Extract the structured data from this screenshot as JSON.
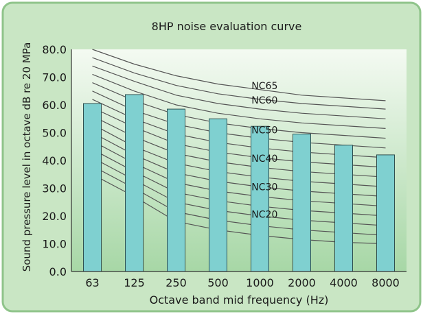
{
  "colors": {
    "panel_fill": "#c9e6c4",
    "panel_stroke": "#8fc48a",
    "plot_top": "#f4faf2",
    "plot_bottom": "#a7d7a6",
    "bar_fill": "#7fd0d0",
    "bar_stroke": "#2f4f4f",
    "curve_stroke": "#555555",
    "axis_stroke": "#333333"
  },
  "chart_data": {
    "type": "bar",
    "title": "8HP noise evaluation curve",
    "xlabel": "Octave band mid frequency (Hz)",
    "ylabel": "Sound pressure level in octave dB re 20 MPa",
    "ylim": [
      0,
      80
    ],
    "yticks": [
      0,
      10,
      20,
      30,
      40,
      50,
      60,
      70,
      80
    ],
    "ytick_labels": [
      "0.0",
      "10.0",
      "20.0",
      "30.0",
      "40.0",
      "50.0",
      "60.0",
      "70.0",
      "80.0"
    ],
    "categories": [
      "63",
      "125",
      "250",
      "500",
      "1000",
      "2000",
      "4000",
      "8000"
    ],
    "values": [
      60.5,
      63.7,
      58.5,
      55,
      52.3,
      49.5,
      45.5,
      42
    ],
    "curves": [
      {
        "values": [
          80,
          74.7,
          70.5,
          67.5,
          65.5,
          63.5,
          62.5,
          61.5
        ]
      },
      {
        "values": [
          77,
          71.5,
          67,
          64,
          62,
          60.5,
          59.5,
          58.5
        ]
      },
      {
        "values": [
          74,
          68.5,
          63.5,
          60.5,
          58.5,
          57,
          56,
          55
        ]
      },
      {
        "values": [
          71,
          65,
          60,
          57,
          55,
          53.5,
          52.5,
          51.5
        ]
      },
      {
        "values": [
          68,
          61.5,
          56.5,
          53.5,
          51.5,
          50,
          49,
          48
        ]
      },
      {
        "values": [
          65,
          58,
          53,
          50,
          48,
          46.5,
          45.5,
          44.5
        ]
      },
      {
        "values": [
          62,
          55,
          49.5,
          46.5,
          44.5,
          43,
          42,
          41
        ]
      },
      {
        "values": [
          59,
          52,
          46,
          43,
          41,
          39.5,
          38.5,
          37.5
        ]
      },
      {
        "values": [
          56,
          48.5,
          42.5,
          39.5,
          37.5,
          36,
          35,
          34
        ]
      },
      {
        "values": [
          53,
          45,
          39,
          36,
          34,
          32.5,
          31.5,
          30.5
        ]
      },
      {
        "values": [
          50,
          42,
          35.5,
          32.5,
          30.5,
          29,
          28,
          27
        ]
      },
      {
        "values": [
          47,
          39,
          32,
          29,
          27,
          25.5,
          24.5,
          23.5
        ]
      },
      {
        "values": [
          44,
          36,
          28.5,
          25.5,
          23.5,
          22,
          21,
          20
        ]
      },
      {
        "values": [
          41,
          33,
          25,
          22,
          20,
          18.5,
          17.5,
          16.5
        ]
      },
      {
        "values": [
          38,
          30,
          21.5,
          18.5,
          16.5,
          15,
          14,
          13
        ]
      },
      {
        "values": [
          35,
          27,
          18,
          15,
          13,
          11.5,
          10.5,
          10
        ]
      }
    ],
    "curve_labels": [
      {
        "text": "NC65",
        "x": 4.3,
        "y": 65.7
      },
      {
        "text": "NC60",
        "x": 4.3,
        "y": 60.5
      },
      {
        "text": "NC50",
        "x": 4.3,
        "y": 49.8
      },
      {
        "text": "NC40",
        "x": 4.3,
        "y": 39.5
      },
      {
        "text": "NC30",
        "x": 4.3,
        "y": 29.3
      },
      {
        "text": "NC20",
        "x": 4.3,
        "y": 19.4
      }
    ]
  }
}
